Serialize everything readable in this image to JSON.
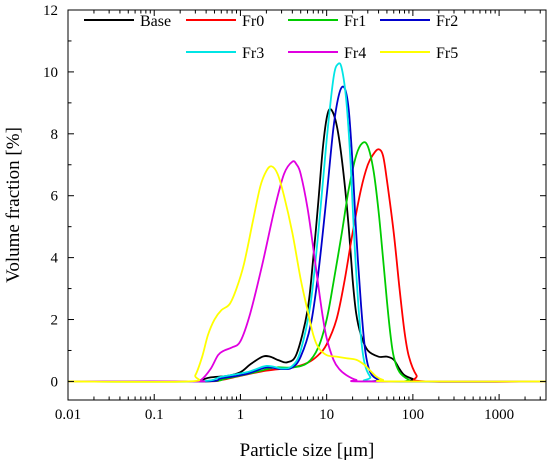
{
  "chart_data": {
    "type": "line",
    "title": "",
    "xlabel": "Particle size [μm]",
    "ylabel": "Volume fraction [%]",
    "xscale": "log",
    "xlim": [
      0.01,
      3500
    ],
    "ylim": [
      -0.6,
      12
    ],
    "grid": false,
    "legend_position": "top",
    "x_ticks": [
      0.01,
      0.1,
      1,
      10,
      100,
      1000
    ],
    "x_tick_labels": [
      "0.01",
      "0.1",
      "1",
      "10",
      "100",
      "1000"
    ],
    "y_ticks": [
      0,
      2,
      4,
      6,
      8,
      10,
      12
    ],
    "y_tick_labels": [
      "0",
      "2",
      "4",
      "6",
      "8",
      "10",
      "12"
    ],
    "series": [
      {
        "name": "Base",
        "color": "#000000",
        "points": [
          [
            0.01,
            0
          ],
          [
            0.27,
            0
          ],
          [
            0.35,
            0.05
          ],
          [
            0.45,
            0.13
          ],
          [
            0.7,
            0.18
          ],
          [
            1.0,
            0.3
          ],
          [
            1.3,
            0.55
          ],
          [
            1.8,
            0.8
          ],
          [
            2.2,
            0.8
          ],
          [
            2.8,
            0.68
          ],
          [
            3.5,
            0.62
          ],
          [
            4.5,
            0.9
          ],
          [
            6.0,
            2.3
          ],
          [
            7.0,
            4.0
          ],
          [
            8.0,
            5.8
          ],
          [
            9.0,
            7.5
          ],
          [
            10.0,
            8.5
          ],
          [
            11.0,
            8.8
          ],
          [
            12.5,
            8.5
          ],
          [
            14.0,
            7.8
          ],
          [
            16.0,
            6.5
          ],
          [
            18.0,
            5.0
          ],
          [
            20.0,
            3.3
          ],
          [
            22.0,
            2.2
          ],
          [
            25.0,
            1.5
          ],
          [
            30.0,
            1.0
          ],
          [
            40.0,
            0.8
          ],
          [
            50.0,
            0.8
          ],
          [
            60.0,
            0.7
          ],
          [
            70.0,
            0.4
          ],
          [
            80.0,
            0.2
          ],
          [
            100.0,
            0.08
          ],
          [
            130.0,
            0.0
          ],
          [
            3500,
            0
          ]
        ]
      },
      {
        "name": "Fr0",
        "color": "#ff0000",
        "points": [
          [
            0.01,
            0
          ],
          [
            0.35,
            0
          ],
          [
            0.6,
            0.05
          ],
          [
            1.0,
            0.18
          ],
          [
            2.0,
            0.35
          ],
          [
            4.0,
            0.45
          ],
          [
            6.0,
            0.6
          ],
          [
            8.0,
            0.85
          ],
          [
            10.0,
            1.2
          ],
          [
            13.0,
            2.0
          ],
          [
            16.0,
            3.2
          ],
          [
            20.0,
            4.8
          ],
          [
            25.0,
            6.2
          ],
          [
            30.0,
            7.0
          ],
          [
            35.0,
            7.35
          ],
          [
            40.0,
            7.5
          ],
          [
            45.0,
            7.3
          ],
          [
            50.0,
            6.5
          ],
          [
            60.0,
            4.8
          ],
          [
            70.0,
            3.0
          ],
          [
            80.0,
            1.6
          ],
          [
            90.0,
            0.8
          ],
          [
            110.0,
            0.2
          ],
          [
            140.0,
            0.0
          ],
          [
            3500,
            0
          ]
        ]
      },
      {
        "name": "Fr1",
        "color": "#00cc00",
        "points": [
          [
            0.01,
            0
          ],
          [
            0.35,
            0
          ],
          [
            0.7,
            0.1
          ],
          [
            1.5,
            0.3
          ],
          [
            2.5,
            0.45
          ],
          [
            4.0,
            0.45
          ],
          [
            6.0,
            0.6
          ],
          [
            8.0,
            1.1
          ],
          [
            10.0,
            2.0
          ],
          [
            12.0,
            3.2
          ],
          [
            15.0,
            4.8
          ],
          [
            18.0,
            6.2
          ],
          [
            22.0,
            7.3
          ],
          [
            26.0,
            7.7
          ],
          [
            30.0,
            7.6
          ],
          [
            35.0,
            6.8
          ],
          [
            40.0,
            5.5
          ],
          [
            45.0,
            4.0
          ],
          [
            50.0,
            2.6
          ],
          [
            55.0,
            1.5
          ],
          [
            60.0,
            0.8
          ],
          [
            70.0,
            0.3
          ],
          [
            90.0,
            0.05
          ],
          [
            110.0,
            0.0
          ],
          [
            3500,
            0
          ]
        ]
      },
      {
        "name": "Fr2",
        "color": "#0000cc",
        "points": [
          [
            0.01,
            0
          ],
          [
            0.35,
            0
          ],
          [
            0.6,
            0.1
          ],
          [
            1.2,
            0.25
          ],
          [
            2.0,
            0.45
          ],
          [
            3.0,
            0.4
          ],
          [
            4.0,
            0.45
          ],
          [
            5.0,
            0.8
          ],
          [
            6.5,
            1.8
          ],
          [
            8.0,
            3.5
          ],
          [
            10.0,
            6.0
          ],
          [
            12.0,
            8.2
          ],
          [
            14.0,
            9.3
          ],
          [
            16.0,
            9.5
          ],
          [
            18.0,
            8.8
          ],
          [
            20.0,
            7.0
          ],
          [
            22.0,
            4.8
          ],
          [
            25.0,
            2.5
          ],
          [
            28.0,
            1.0
          ],
          [
            32.0,
            0.3
          ],
          [
            40.0,
            0.05
          ],
          [
            50.0,
            0.0
          ],
          [
            3500,
            0
          ]
        ]
      },
      {
        "name": "Fr3",
        "color": "#00e5e5",
        "points": [
          [
            0.01,
            0
          ],
          [
            0.3,
            0
          ],
          [
            0.6,
            0.15
          ],
          [
            1.2,
            0.3
          ],
          [
            2.0,
            0.5
          ],
          [
            3.0,
            0.42
          ],
          [
            4.0,
            0.5
          ],
          [
            5.0,
            1.0
          ],
          [
            6.5,
            2.5
          ],
          [
            8.0,
            4.8
          ],
          [
            10.0,
            7.8
          ],
          [
            12.0,
            9.8
          ],
          [
            13.5,
            10.25
          ],
          [
            15.0,
            10.1
          ],
          [
            17.0,
            9.0
          ],
          [
            19.0,
            7.0
          ],
          [
            21.0,
            4.5
          ],
          [
            24.0,
            2.0
          ],
          [
            27.0,
            0.7
          ],
          [
            32.0,
            0.15
          ],
          [
            40.0,
            0.0
          ],
          [
            3500,
            0
          ]
        ]
      },
      {
        "name": "Fr4",
        "color": "#e000e0",
        "points": [
          [
            0.01,
            0
          ],
          [
            0.28,
            0
          ],
          [
            0.35,
            0.05
          ],
          [
            0.45,
            0.4
          ],
          [
            0.55,
            0.85
          ],
          [
            0.65,
            1.0
          ],
          [
            0.8,
            1.1
          ],
          [
            1.0,
            1.3
          ],
          [
            1.3,
            2.2
          ],
          [
            1.8,
            3.8
          ],
          [
            2.5,
            5.6
          ],
          [
            3.2,
            6.7
          ],
          [
            4.0,
            7.1
          ],
          [
            4.5,
            7.0
          ],
          [
            5.0,
            6.7
          ],
          [
            6.0,
            5.6
          ],
          [
            7.0,
            4.3
          ],
          [
            8.0,
            3.1
          ],
          [
            9.0,
            2.1
          ],
          [
            10.0,
            1.4
          ],
          [
            12.0,
            0.7
          ],
          [
            14.0,
            0.4
          ],
          [
            17.0,
            0.2
          ],
          [
            22.0,
            0.05
          ],
          [
            30.0,
            0.0
          ],
          [
            3500,
            0
          ]
        ]
      },
      {
        "name": "Fr5",
        "color": "#ffff00",
        "points": [
          [
            0.01,
            0
          ],
          [
            0.25,
            0
          ],
          [
            0.3,
            0.2
          ],
          [
            0.36,
            0.8
          ],
          [
            0.42,
            1.5
          ],
          [
            0.5,
            2.0
          ],
          [
            0.6,
            2.3
          ],
          [
            0.75,
            2.5
          ],
          [
            0.9,
            3.0
          ],
          [
            1.1,
            3.8
          ],
          [
            1.4,
            5.2
          ],
          [
            1.7,
            6.3
          ],
          [
            2.0,
            6.8
          ],
          [
            2.3,
            6.95
          ],
          [
            2.7,
            6.7
          ],
          [
            3.2,
            6.0
          ],
          [
            4.0,
            4.8
          ],
          [
            5.0,
            3.3
          ],
          [
            6.0,
            2.3
          ],
          [
            7.0,
            1.5
          ],
          [
            8.0,
            1.1
          ],
          [
            10.0,
            0.85
          ],
          [
            13.0,
            0.8
          ],
          [
            17.0,
            0.75
          ],
          [
            22.0,
            0.7
          ],
          [
            27.0,
            0.55
          ],
          [
            32.0,
            0.35
          ],
          [
            38.0,
            0.15
          ],
          [
            45.0,
            0.05
          ],
          [
            55.0,
            0.0
          ],
          [
            3500,
            0
          ]
        ]
      }
    ]
  }
}
